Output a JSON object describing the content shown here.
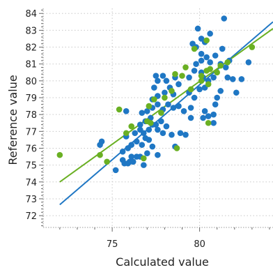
{
  "chart_data": {
    "type": "scatter",
    "xlabel": "Calculated value",
    "ylabel": "Reference value",
    "xlim": [
      71.05,
      84.2
    ],
    "ylim": [
      71.3,
      84.3
    ],
    "x_ticks": [
      75,
      80
    ],
    "y_ticks": [
      72,
      73,
      74,
      75,
      76,
      77,
      78,
      79,
      80,
      81,
      82,
      83,
      84
    ],
    "grid": true,
    "series": [
      {
        "color": "#1f77c4",
        "fit_line": {
          "x": [
            72.0,
            84.2
          ],
          "y": [
            72.65,
            83.5
          ]
        },
        "points": [
          [
            75.2,
            74.7
          ],
          [
            75.6,
            75.3
          ],
          [
            75.7,
            75.1
          ],
          [
            75.9,
            75.1
          ],
          [
            76.0,
            75.2
          ],
          [
            76.1,
            75.5
          ],
          [
            76.2,
            75.2
          ],
          [
            76.4,
            75.5
          ],
          [
            76.6,
            75.5
          ],
          [
            76.8,
            75.0
          ],
          [
            75.6,
            75.8
          ],
          [
            75.9,
            76.0
          ],
          [
            76.1,
            76.2
          ],
          [
            76.4,
            76.4
          ],
          [
            76.7,
            76.2
          ],
          [
            76.9,
            76.6
          ],
          [
            77.1,
            76.5
          ],
          [
            77.3,
            76.1
          ],
          [
            77.0,
            75.7
          ],
          [
            77.6,
            75.6
          ],
          [
            74.3,
            76.2
          ],
          [
            74.4,
            76.4
          ],
          [
            75.8,
            76.7
          ],
          [
            76.3,
            76.9
          ],
          [
            76.6,
            77.1
          ],
          [
            76.8,
            76.9
          ],
          [
            77.1,
            77.1
          ],
          [
            77.3,
            77.4
          ],
          [
            77.6,
            77.1
          ],
          [
            77.9,
            76.9
          ],
          [
            76.6,
            77.4
          ],
          [
            76.9,
            77.6
          ],
          [
            77.2,
            77.8
          ],
          [
            77.5,
            77.4
          ],
          [
            77.8,
            77.6
          ],
          [
            78.1,
            77.3
          ],
          [
            78.4,
            76.8
          ],
          [
            78.6,
            76.1
          ],
          [
            78.9,
            76.9
          ],
          [
            79.2,
            76.8
          ],
          [
            76.7,
            78.1
          ],
          [
            77.0,
            78.2
          ],
          [
            77.3,
            78.4
          ],
          [
            77.6,
            78.6
          ],
          [
            77.9,
            78.3
          ],
          [
            78.2,
            78.6
          ],
          [
            78.5,
            78.4
          ],
          [
            78.8,
            78.5
          ],
          [
            79.1,
            78.2
          ],
          [
            79.5,
            78.4
          ],
          [
            75.8,
            78.2
          ],
          [
            77.3,
            78.9
          ],
          [
            77.6,
            79.1
          ],
          [
            78.0,
            79.3
          ],
          [
            78.3,
            79.6
          ],
          [
            78.5,
            79.2
          ],
          [
            78.8,
            79.8
          ],
          [
            79.4,
            79.3
          ],
          [
            79.7,
            79.0
          ],
          [
            80.0,
            79.5
          ],
          [
            77.4,
            79.6
          ],
          [
            77.6,
            80.0
          ],
          [
            77.9,
            80.3
          ],
          [
            78.1,
            80.0
          ],
          [
            77.5,
            80.3
          ],
          [
            78.6,
            80.2
          ],
          [
            79.4,
            80.2
          ],
          [
            79.7,
            80.6
          ],
          [
            80.2,
            80.2
          ],
          [
            80.5,
            80.0
          ],
          [
            79.8,
            81.0
          ],
          [
            80.1,
            81.2
          ],
          [
            80.4,
            81.4
          ],
          [
            80.6,
            81.1
          ],
          [
            80.9,
            81.5
          ],
          [
            81.2,
            81.0
          ],
          [
            81.5,
            80.8
          ],
          [
            81.7,
            81.2
          ],
          [
            80.1,
            80.5
          ],
          [
            80.8,
            80.2
          ],
          [
            79.8,
            82.0
          ],
          [
            80.1,
            81.6
          ],
          [
            80.3,
            82.3
          ],
          [
            80.6,
            82.8
          ],
          [
            79.6,
            82.2
          ],
          [
            81.3,
            81.9
          ],
          [
            80.1,
            82.5
          ],
          [
            79.9,
            83.1
          ],
          [
            81.4,
            83.7
          ],
          [
            82.8,
            81.1
          ],
          [
            80.3,
            78.2
          ],
          [
            80.5,
            77.9
          ],
          [
            80.8,
            78.0
          ],
          [
            80.2,
            77.8
          ],
          [
            80.8,
            77.5
          ],
          [
            81.2,
            79.4
          ],
          [
            81.6,
            80.2
          ],
          [
            81.9,
            80.1
          ],
          [
            82.4,
            80.1
          ],
          [
            82.1,
            79.3
          ],
          [
            81.0,
            79.0
          ],
          [
            80.9,
            78.6
          ],
          [
            80.3,
            79.6
          ],
          [
            79.5,
            77.8
          ]
        ]
      },
      {
        "color": "#6ab023",
        "fit_line": {
          "x": [
            72.0,
            84.2
          ],
          "y": [
            74.0,
            83.1
          ]
        },
        "points": [
          [
            72.0,
            75.6
          ],
          [
            74.3,
            75.6
          ],
          [
            74.7,
            75.2
          ],
          [
            75.4,
            78.3
          ],
          [
            75.8,
            76.9
          ],
          [
            76.1,
            77.3
          ],
          [
            76.8,
            75.4
          ],
          [
            77.0,
            77.6
          ],
          [
            77.2,
            77.5
          ],
          [
            77.1,
            78.5
          ],
          [
            77.8,
            78.1
          ],
          [
            77.4,
            78.9
          ],
          [
            78.0,
            79.0
          ],
          [
            78.4,
            79.4
          ],
          [
            78.6,
            80.4
          ],
          [
            79.0,
            80.3
          ],
          [
            78.7,
            76.0
          ],
          [
            79.2,
            80.8
          ],
          [
            79.5,
            79.5
          ],
          [
            79.7,
            81.9
          ],
          [
            80.1,
            80.3
          ],
          [
            80.4,
            80.6
          ],
          [
            80.5,
            79.8
          ],
          [
            80.6,
            80.7
          ],
          [
            80.4,
            82.4
          ],
          [
            80.5,
            77.5
          ],
          [
            81.0,
            80.5
          ],
          [
            81.2,
            80.9
          ],
          [
            81.6,
            81.1
          ],
          [
            83.0,
            82.0
          ],
          [
            80.1,
            80.0
          ]
        ]
      }
    ]
  }
}
